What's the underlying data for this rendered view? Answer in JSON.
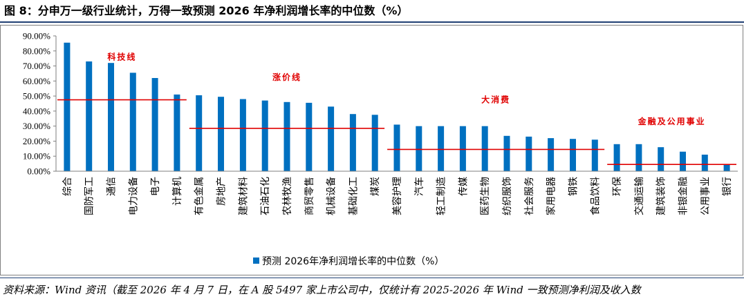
{
  "title": "图 8：分申万一级行业统计，万得一致预测 2026 年净利润增长率的中位数（%）",
  "source": "资料来源：Wind 资讯（截至 2026 年 4 月 7 日，在 A 股 5497 家上市公司中，仅统计有 2025-2026 年 Wind 一致预测净利润及收入数",
  "colors": {
    "bar": "#0070c0",
    "reference_line": "#e00000",
    "annotation": "#e00000"
  },
  "chart_data": {
    "type": "bar",
    "categories": [
      "综合",
      "国防军工",
      "通信",
      "电力设备",
      "电子",
      "计算机",
      "有色金属",
      "房地产",
      "建筑材料",
      "石油石化",
      "农林牧渔",
      "商贸零售",
      "机械设备",
      "基础化工",
      "煤炭",
      "美容护理",
      "汽车",
      "轻工制造",
      "传媒",
      "医药生物",
      "纺织服饰",
      "社会服务",
      "家用电器",
      "钢铁",
      "食品饮料",
      "环保",
      "交通运输",
      "建筑装饰",
      "非银金融",
      "公用事业",
      "银行"
    ],
    "series": [
      {
        "name": "预测 2026年净利润增长率的中位数（%）",
        "values": [
          85.5,
          73.0,
          72.0,
          65.5,
          62.0,
          51.0,
          50.5,
          49.5,
          48.0,
          47.0,
          46.0,
          45.5,
          43.0,
          38.0,
          37.5,
          31.0,
          30.0,
          30.0,
          30.0,
          30.0,
          23.5,
          23.0,
          22.0,
          21.5,
          21.0,
          18.0,
          18.0,
          16.0,
          13.0,
          11.0,
          4.5
        ]
      }
    ],
    "ylim": [
      0,
      90
    ],
    "yticks": [
      "0.00%",
      "10.00%",
      "20.00%",
      "30.00%",
      "40.00%",
      "50.00%",
      "60.00%",
      "70.00%",
      "80.00%",
      "90.00%"
    ],
    "grid": false,
    "legend_position": "bottom",
    "reference_lines": [
      {
        "label": "科技线",
        "from_index": 0,
        "to_index": 5,
        "value": 47.5
      },
      {
        "label": "涨价线",
        "from_index": 6,
        "to_index": 14,
        "value": 28.5
      },
      {
        "label": "大消费",
        "from_index": 15,
        "to_index": 24,
        "value": 14.5
      },
      {
        "label": "金融及公用事业",
        "from_index": 25,
        "to_index": 30,
        "value": 4.5
      }
    ]
  }
}
